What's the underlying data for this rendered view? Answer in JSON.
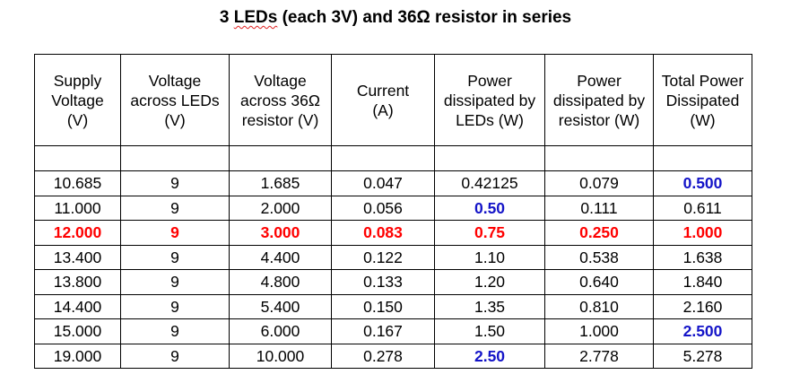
{
  "title": {
    "pre": "3 ",
    "underlined": "LEDs",
    "post": " (each 3V) and 36Ω resistor in series"
  },
  "headers": [
    [
      "Supply",
      "Voltage",
      "(V)"
    ],
    [
      "Voltage",
      "across LEDs",
      "(V)"
    ],
    [
      "Voltage",
      "across 36Ω",
      "resistor (V)"
    ],
    [
      "Current",
      "(A)"
    ],
    [
      "Power",
      "dissipated by",
      "LEDs (W)"
    ],
    [
      "Power",
      "dissipated by",
      "resistor (W)"
    ],
    [
      "Total Power",
      "Dissipated",
      "(W)"
    ]
  ],
  "rows": [
    [
      {
        "v": "10.685"
      },
      {
        "v": "9"
      },
      {
        "v": "1.685"
      },
      {
        "v": "0.047"
      },
      {
        "v": "0.42125"
      },
      {
        "v": "0.079"
      },
      {
        "v": "0.500",
        "c": "blue"
      }
    ],
    [
      {
        "v": "11.000"
      },
      {
        "v": "9"
      },
      {
        "v": "2.000"
      },
      {
        "v": "0.056"
      },
      {
        "v": "0.50",
        "c": "blue"
      },
      {
        "v": "0.111"
      },
      {
        "v": "0.611"
      }
    ],
    [
      {
        "v": "12.000",
        "c": "red"
      },
      {
        "v": "9",
        "c": "red"
      },
      {
        "v": "3.000",
        "c": "red"
      },
      {
        "v": "0.083",
        "c": "red"
      },
      {
        "v": "0.75",
        "c": "red"
      },
      {
        "v": "0.250",
        "c": "red"
      },
      {
        "v": "1.000",
        "c": "red"
      }
    ],
    [
      {
        "v": "13.400"
      },
      {
        "v": "9"
      },
      {
        "v": "4.400"
      },
      {
        "v": "0.122"
      },
      {
        "v": "1.10"
      },
      {
        "v": "0.538"
      },
      {
        "v": "1.638"
      }
    ],
    [
      {
        "v": "13.800"
      },
      {
        "v": "9"
      },
      {
        "v": "4.800"
      },
      {
        "v": "0.133"
      },
      {
        "v": "1.20"
      },
      {
        "v": "0.640"
      },
      {
        "v": "1.840"
      }
    ],
    [
      {
        "v": "14.400"
      },
      {
        "v": "9"
      },
      {
        "v": "5.400"
      },
      {
        "v": "0.150"
      },
      {
        "v": "1.35"
      },
      {
        "v": "0.810"
      },
      {
        "v": "2.160"
      }
    ],
    [
      {
        "v": "15.000"
      },
      {
        "v": "9"
      },
      {
        "v": "6.000"
      },
      {
        "v": "0.167"
      },
      {
        "v": "1.50"
      },
      {
        "v": "1.000"
      },
      {
        "v": "2.500",
        "c": "blue"
      }
    ],
    [
      {
        "v": "19.000"
      },
      {
        "v": "9"
      },
      {
        "v": "10.000"
      },
      {
        "v": "0.278"
      },
      {
        "v": "2.50",
        "c": "blue"
      },
      {
        "v": "2.778"
      },
      {
        "v": "5.278"
      }
    ]
  ],
  "colors": {
    "red": "#ff0000",
    "blue": "#1414c8"
  }
}
